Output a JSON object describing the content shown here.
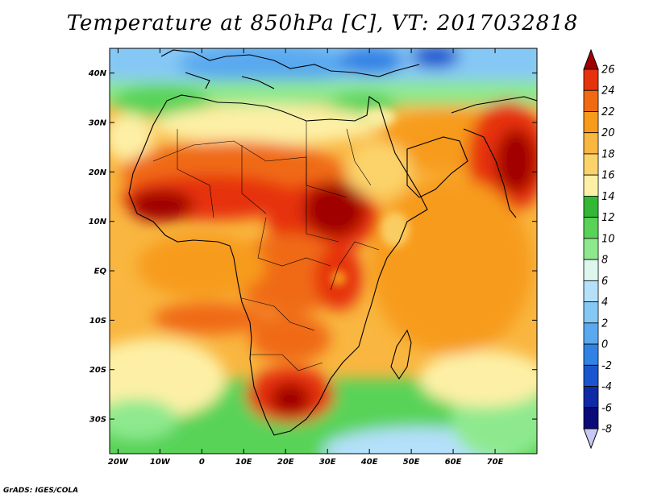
{
  "title": "Temperature at 850hPa [C], VT: 2017032818",
  "credit": "GrADS: IGES/COLA",
  "map": {
    "lat_labels": [
      "40N",
      "30N",
      "20N",
      "10N",
      "EQ",
      "10S",
      "20S",
      "30S"
    ],
    "lat_values": [
      40,
      30,
      20,
      10,
      0,
      -10,
      -20,
      -30
    ],
    "lon_labels": [
      "20W",
      "10W",
      "0",
      "10E",
      "20E",
      "30E",
      "40E",
      "50E",
      "60E",
      "70E"
    ],
    "lon_values": [
      -20,
      -10,
      0,
      10,
      20,
      30,
      40,
      50,
      60,
      70
    ],
    "lon_range": [
      -22,
      80
    ],
    "lat_range": [
      -37,
      45
    ]
  },
  "colorbar": {
    "labels": [
      "26",
      "24",
      "22",
      "20",
      "18",
      "16",
      "14",
      "12",
      "10",
      "8",
      "6",
      "4",
      "2",
      "0",
      "-2",
      "-4",
      "-6",
      "-8"
    ],
    "colors": [
      "#a00000",
      "#e6330e",
      "#f06a13",
      "#f79b1c",
      "#f9b640",
      "#fbd36a",
      "#fdf0a6",
      "#34b734",
      "#58d358",
      "#8ee98e",
      "#ddf7ef",
      "#b4e0fa",
      "#86c8f5",
      "#5aa9f0",
      "#3083e5",
      "#1a55cf",
      "#0e2aa6",
      "#0a0a78",
      "#c8c8f5"
    ]
  }
}
